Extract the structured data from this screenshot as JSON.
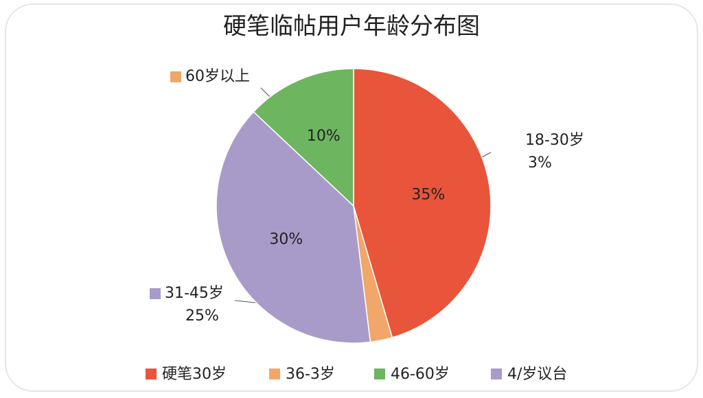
{
  "chart_data": {
    "type": "pie",
    "title": "硬笔临帖用户年龄分布图",
    "categories": [
      "硬笔30岁",
      "36-3岁",
      "4/岁议台",
      "46-60岁"
    ],
    "values": [
      35,
      2,
      30,
      10
    ],
    "value_labels": [
      "35%",
      null,
      "30%",
      "10%"
    ],
    "colors": [
      "#e8553a",
      "#f1a66a",
      "#a99bc9",
      "#6db55f"
    ],
    "annotations": [
      {
        "label": "60岁以上",
        "color": "#f1a66a"
      },
      {
        "label": "18-30岁",
        "sublabel": "3%"
      },
      {
        "label": "31-45岁",
        "sublabel": "25%",
        "color": "#a99bc9"
      }
    ]
  }
}
